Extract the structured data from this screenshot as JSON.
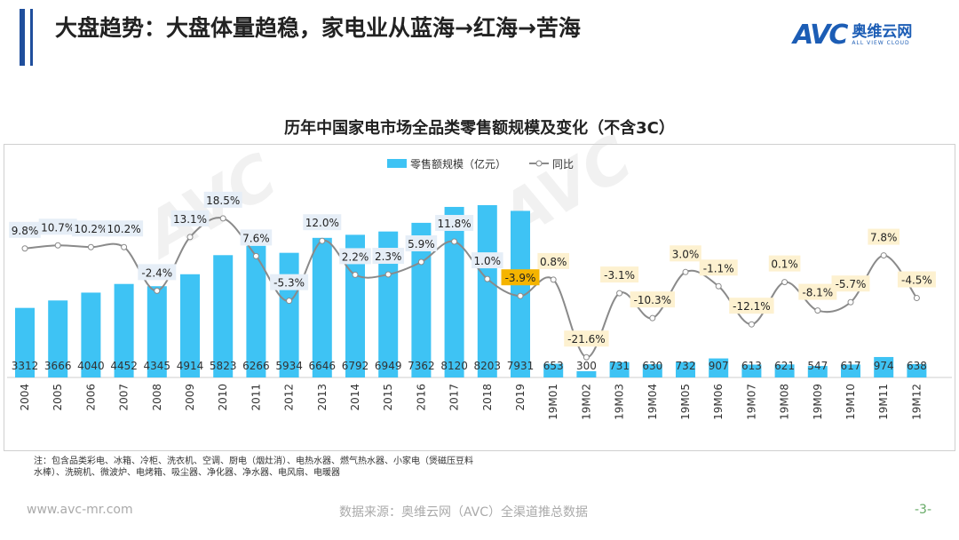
{
  "header": {
    "title": "大盘趋势：大盘体量趋稳，家电业从蓝海→红海→苦海",
    "logo_mark": "AVC",
    "logo_cn": "奥维云网",
    "logo_en": "ALL VIEW CLOUD"
  },
  "chart_data": {
    "type": "bar+line",
    "title": "历年中国家电市场全品类零售额规模及变化（不含3C）",
    "categories": [
      "2004",
      "2005",
      "2006",
      "2007",
      "2008",
      "2009",
      "2010",
      "2011",
      "2012",
      "2013",
      "2014",
      "2015",
      "2016",
      "2017",
      "2018",
      "2019",
      "19M01",
      "19M02",
      "19M03",
      "19M04",
      "19M05",
      "19M06",
      "19M07",
      "19M08",
      "19M09",
      "19M10",
      "19M11",
      "19M12"
    ],
    "series": [
      {
        "name": "零售额规模（亿元）",
        "type": "bar",
        "color": "#3ec3f4",
        "values": [
          3312,
          3666,
          4040,
          4452,
          4345,
          4914,
          5823,
          6266,
          5934,
          6646,
          6792,
          6949,
          7362,
          8120,
          8203,
          7931,
          653,
          300,
          731,
          630,
          732,
          907,
          613,
          621,
          547,
          617,
          974,
          638
        ]
      },
      {
        "name": "同比",
        "type": "line",
        "color": "#8a8a8a",
        "values": [
          9.8,
          10.7,
          10.2,
          10.2,
          -2.4,
          13.1,
          18.5,
          7.6,
          -5.3,
          12.0,
          2.2,
          2.3,
          5.9,
          11.8,
          1.0,
          -3.9,
          0.8,
          -21.6,
          -3.1,
          -10.3,
          3.0,
          -1.1,
          -12.1,
          0.1,
          -8.1,
          -5.7,
          7.8,
          -4.5
        ]
      }
    ],
    "legend": "top-center"
  },
  "footer": {
    "note_line1": "注：包含品类彩电、冰箱、冷柜、洗衣机、空调、厨电（烟灶消）、电热水器、燃气热水器、小家电（煲磁压豆料",
    "note_line2": "水棒）、洗碗机、微波炉、电烤箱、吸尘器、净化器、净水器、电风扇、电暖器",
    "site": "www.avc-mr.com",
    "source": "数据来源：奥维云网（AVC）全渠道推总数据",
    "page": "-3-"
  }
}
